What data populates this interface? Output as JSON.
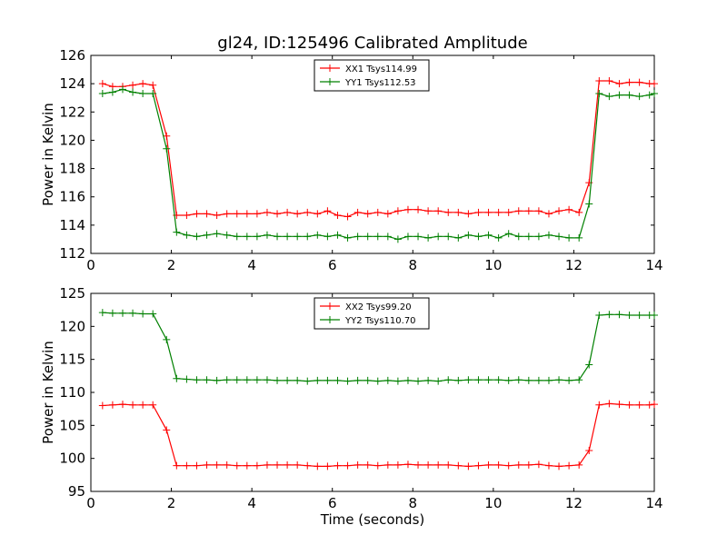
{
  "title": "gl24, ID:125496 Calibrated Amplitude",
  "chart_data": [
    {
      "type": "line",
      "xlabel": "",
      "ylabel": "Power in Kelvin",
      "xlim": [
        0,
        14
      ],
      "ylim": [
        112,
        126
      ],
      "xticks": [
        0,
        2,
        4,
        6,
        8,
        10,
        12,
        14
      ],
      "yticks": [
        112,
        114,
        116,
        118,
        120,
        122,
        124,
        126
      ],
      "grid": false,
      "legend_position": "top-center",
      "x": [
        0.29,
        0.54,
        0.79,
        1.04,
        1.29,
        1.54,
        1.88,
        2.13,
        2.38,
        2.63,
        2.88,
        3.13,
        3.38,
        3.63,
        3.88,
        4.13,
        4.38,
        4.63,
        4.88,
        5.13,
        5.38,
        5.63,
        5.88,
        6.13,
        6.38,
        6.63,
        6.88,
        7.13,
        7.38,
        7.63,
        7.88,
        8.13,
        8.38,
        8.63,
        8.88,
        9.13,
        9.38,
        9.63,
        9.88,
        10.13,
        10.38,
        10.63,
        10.88,
        11.13,
        11.38,
        11.63,
        11.88,
        12.13,
        12.38,
        12.63,
        12.88,
        13.13,
        13.38,
        13.63,
        13.88,
        14.0
      ],
      "series": [
        {
          "name": "XX1 Tsys114.99",
          "color": "#ff0000",
          "values": [
            124.0,
            123.8,
            123.8,
            123.9,
            124.0,
            123.9,
            120.3,
            114.7,
            114.7,
            114.8,
            114.8,
            114.7,
            114.8,
            114.8,
            114.8,
            114.8,
            114.9,
            114.8,
            114.9,
            114.8,
            114.9,
            114.8,
            115.0,
            114.7,
            114.6,
            114.9,
            114.8,
            114.9,
            114.8,
            115.0,
            115.1,
            115.1,
            115.0,
            115.0,
            114.9,
            114.9,
            114.8,
            114.9,
            114.9,
            114.9,
            114.9,
            115.0,
            115.0,
            115.0,
            114.8,
            115.0,
            115.1,
            114.9,
            117.0,
            124.2,
            124.2,
            124.0,
            124.1,
            124.1,
            124.0,
            124.0
          ]
        },
        {
          "name": "YY1 Tsys112.53",
          "color": "#008000",
          "values": [
            123.3,
            123.4,
            123.6,
            123.4,
            123.3,
            123.3,
            119.4,
            113.5,
            113.3,
            113.2,
            113.3,
            113.4,
            113.3,
            113.2,
            113.2,
            113.2,
            113.3,
            113.2,
            113.2,
            113.2,
            113.2,
            113.3,
            113.2,
            113.3,
            113.1,
            113.2,
            113.2,
            113.2,
            113.2,
            113.0,
            113.2,
            113.2,
            113.1,
            113.2,
            113.2,
            113.1,
            113.3,
            113.2,
            113.3,
            113.1,
            113.4,
            113.2,
            113.2,
            113.2,
            113.3,
            113.2,
            113.1,
            113.1,
            115.5,
            123.3,
            123.1,
            123.2,
            123.2,
            123.1,
            123.2,
            123.3
          ]
        }
      ]
    },
    {
      "type": "line",
      "xlabel": "Time (seconds)",
      "ylabel": "Power in Kelvin",
      "xlim": [
        0,
        14
      ],
      "ylim": [
        95,
        125
      ],
      "xticks": [
        0,
        2,
        4,
        6,
        8,
        10,
        12,
        14
      ],
      "yticks": [
        95,
        100,
        105,
        110,
        115,
        120,
        125
      ],
      "grid": false,
      "legend_position": "top-center",
      "x": [
        0.29,
        0.54,
        0.79,
        1.04,
        1.29,
        1.54,
        1.88,
        2.13,
        2.38,
        2.63,
        2.88,
        3.13,
        3.38,
        3.63,
        3.88,
        4.13,
        4.38,
        4.63,
        4.88,
        5.13,
        5.38,
        5.63,
        5.88,
        6.13,
        6.38,
        6.63,
        6.88,
        7.13,
        7.38,
        7.63,
        7.88,
        8.13,
        8.38,
        8.63,
        8.88,
        9.13,
        9.38,
        9.63,
        9.88,
        10.13,
        10.38,
        10.63,
        10.88,
        11.13,
        11.38,
        11.63,
        11.88,
        12.13,
        12.38,
        12.63,
        12.88,
        13.13,
        13.38,
        13.63,
        13.88,
        14.0
      ],
      "series": [
        {
          "name": "XX2 Tsys99.20",
          "color": "#ff0000",
          "values": [
            108.0,
            108.1,
            108.2,
            108.1,
            108.1,
            108.1,
            104.3,
            98.9,
            98.9,
            98.9,
            99.0,
            99.0,
            99.0,
            98.9,
            98.9,
            98.9,
            99.0,
            99.0,
            99.0,
            99.0,
            98.9,
            98.8,
            98.8,
            98.9,
            98.9,
            99.0,
            99.0,
            98.9,
            99.0,
            99.0,
            99.1,
            99.0,
            99.0,
            99.0,
            99.0,
            98.9,
            98.8,
            98.9,
            99.0,
            99.0,
            98.9,
            99.0,
            99.0,
            99.1,
            98.9,
            98.8,
            98.9,
            99.0,
            101.2,
            108.1,
            108.3,
            108.2,
            108.1,
            108.1,
            108.1,
            108.2
          ]
        },
        {
          "name": "YY2 Tsys110.70",
          "color": "#008000",
          "values": [
            122.1,
            122.0,
            122.0,
            122.0,
            121.9,
            121.9,
            118.0,
            112.1,
            112.0,
            111.9,
            111.9,
            111.8,
            111.9,
            111.9,
            111.9,
            111.9,
            111.9,
            111.8,
            111.8,
            111.8,
            111.7,
            111.8,
            111.8,
            111.8,
            111.7,
            111.8,
            111.8,
            111.7,
            111.8,
            111.7,
            111.8,
            111.7,
            111.8,
            111.7,
            111.9,
            111.8,
            111.9,
            111.9,
            111.9,
            111.9,
            111.8,
            111.9,
            111.8,
            111.8,
            111.8,
            111.9,
            111.8,
            111.9,
            114.2,
            121.7,
            121.8,
            121.8,
            121.7,
            121.7,
            121.7,
            121.7
          ]
        }
      ]
    }
  ]
}
